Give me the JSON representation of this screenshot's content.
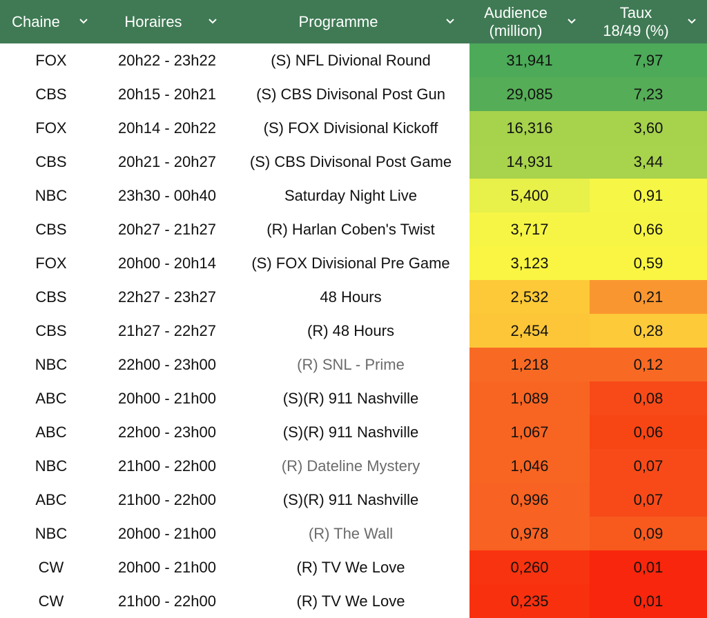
{
  "header": {
    "chaine": "Chaine",
    "horaires": "Horaires",
    "programme": "Programme",
    "audience_line1": "Audience",
    "audience_line2": "(million)",
    "taux_line1": "Taux",
    "taux_line2": "18/49 (%)",
    "dropdown_icon": "chevron-down-icon"
  },
  "colors": {
    "header_bg": "#3f7a54",
    "header_text": "#ffffff"
  },
  "rows": [
    {
      "chaine": "FOX",
      "horaires": "20h22 - 23h22",
      "programme": "(S) NFL Divional Round",
      "audience": "31,941",
      "taux": "7,97",
      "aud_color": "#4caa58",
      "taux_color": "#4caa58",
      "muted": false
    },
    {
      "chaine": "CBS",
      "horaires": "20h15 - 20h21",
      "programme": "(S) CBS Divisonal Post Gun",
      "audience": "29,085",
      "taux": "7,23",
      "aud_color": "#56ad57",
      "taux_color": "#56ad57",
      "muted": false
    },
    {
      "chaine": "FOX",
      "horaires": "20h14 - 20h22",
      "programme": "(S) FOX Divisional Kickoff",
      "audience": "16,316",
      "taux": "3,60",
      "aud_color": "#a6d24c",
      "taux_color": "#a6d24c",
      "muted": false
    },
    {
      "chaine": "CBS",
      "horaires": "20h21 - 20h27",
      "programme": "(S) CBS Divisonal Post Game",
      "audience": "14,931",
      "taux": "3,44",
      "aud_color": "#a8d34c",
      "taux_color": "#a8d34c",
      "muted": false
    },
    {
      "chaine": "NBC",
      "horaires": "23h30 - 00h40",
      "programme": "Saturday Night Live",
      "audience": "5,400",
      "taux": "0,91",
      "aud_color": "#e8f04a",
      "taux_color": "#f5f646",
      "muted": false
    },
    {
      "chaine": "CBS",
      "horaires": "20h27 - 21h27",
      "programme": "(R) Harlan Coben's Twist",
      "audience": "3,717",
      "taux": "0,66",
      "aud_color": "#f6f545",
      "taux_color": "#f6f545",
      "muted": false
    },
    {
      "chaine": "FOX",
      "horaires": "20h00 - 20h14",
      "programme": "(S) FOX Divisional Pre Game",
      "audience": "3,123",
      "taux": "0,59",
      "aud_color": "#f9f542",
      "taux_color": "#f9f542",
      "muted": false
    },
    {
      "chaine": "CBS",
      "horaires": "22h27 - 23h27",
      "programme": "48 Hours",
      "audience": "2,532",
      "taux": "0,21",
      "aud_color": "#fdc938",
      "taux_color": "#fa9630",
      "muted": false
    },
    {
      "chaine": "CBS",
      "horaires": "21h27 - 22h27",
      "programme": "(R) 48 Hours",
      "audience": "2,454",
      "taux": "0,28",
      "aud_color": "#fdc638",
      "taux_color": "#fdca3a",
      "muted": false
    },
    {
      "chaine": "NBC",
      "horaires": "22h00 - 23h00",
      "programme": "(R) SNL - Prime",
      "audience": "1,218",
      "taux": "0,12",
      "aud_color": "#f86a24",
      "taux_color": "#f86a24",
      "muted": true
    },
    {
      "chaine": "ABC",
      "horaires": "20h00 - 21h00",
      "programme": "(S)(R) 911 Nashville",
      "audience": "1,089",
      "taux": "0,08",
      "aud_color": "#f86522",
      "taux_color": "#f84a18",
      "muted": false
    },
    {
      "chaine": "ABC",
      "horaires": "22h00 - 23h00",
      "programme": "(S)(R) 911 Nashville",
      "audience": "1,067",
      "taux": "0,06",
      "aud_color": "#f86522",
      "taux_color": "#f84514",
      "muted": false
    },
    {
      "chaine": "NBC",
      "horaires": "21h00 - 22h00",
      "programme": "(R) Dateline Mystery",
      "audience": "1,046",
      "taux": "0,07",
      "aud_color": "#f86522",
      "taux_color": "#f84a18",
      "muted": true
    },
    {
      "chaine": "ABC",
      "horaires": "21h00 - 22h00",
      "programme": "(S)(R) 911 Nashville",
      "audience": "0,996",
      "taux": "0,07",
      "aud_color": "#f86222",
      "taux_color": "#f84a18",
      "muted": false
    },
    {
      "chaine": "NBC",
      "horaires": "20h00 - 21h00",
      "programme": "(R) The Wall",
      "audience": "0,978",
      "taux": "0,09",
      "aud_color": "#f86222",
      "taux_color": "#f85a1e",
      "muted": true
    },
    {
      "chaine": "CW",
      "horaires": "20h00 - 21h00",
      "programme": "(R) TV We Love",
      "audience": "0,260",
      "taux": "0,01",
      "aud_color": "#f8330f",
      "taux_color": "#f8260c",
      "muted": false
    },
    {
      "chaine": "CW",
      "horaires": "21h00 - 22h00",
      "programme": "(R) TV We Love",
      "audience": "0,235",
      "taux": "0,01",
      "aud_color": "#f8300e",
      "taux_color": "#f8260c",
      "muted": false
    }
  ]
}
